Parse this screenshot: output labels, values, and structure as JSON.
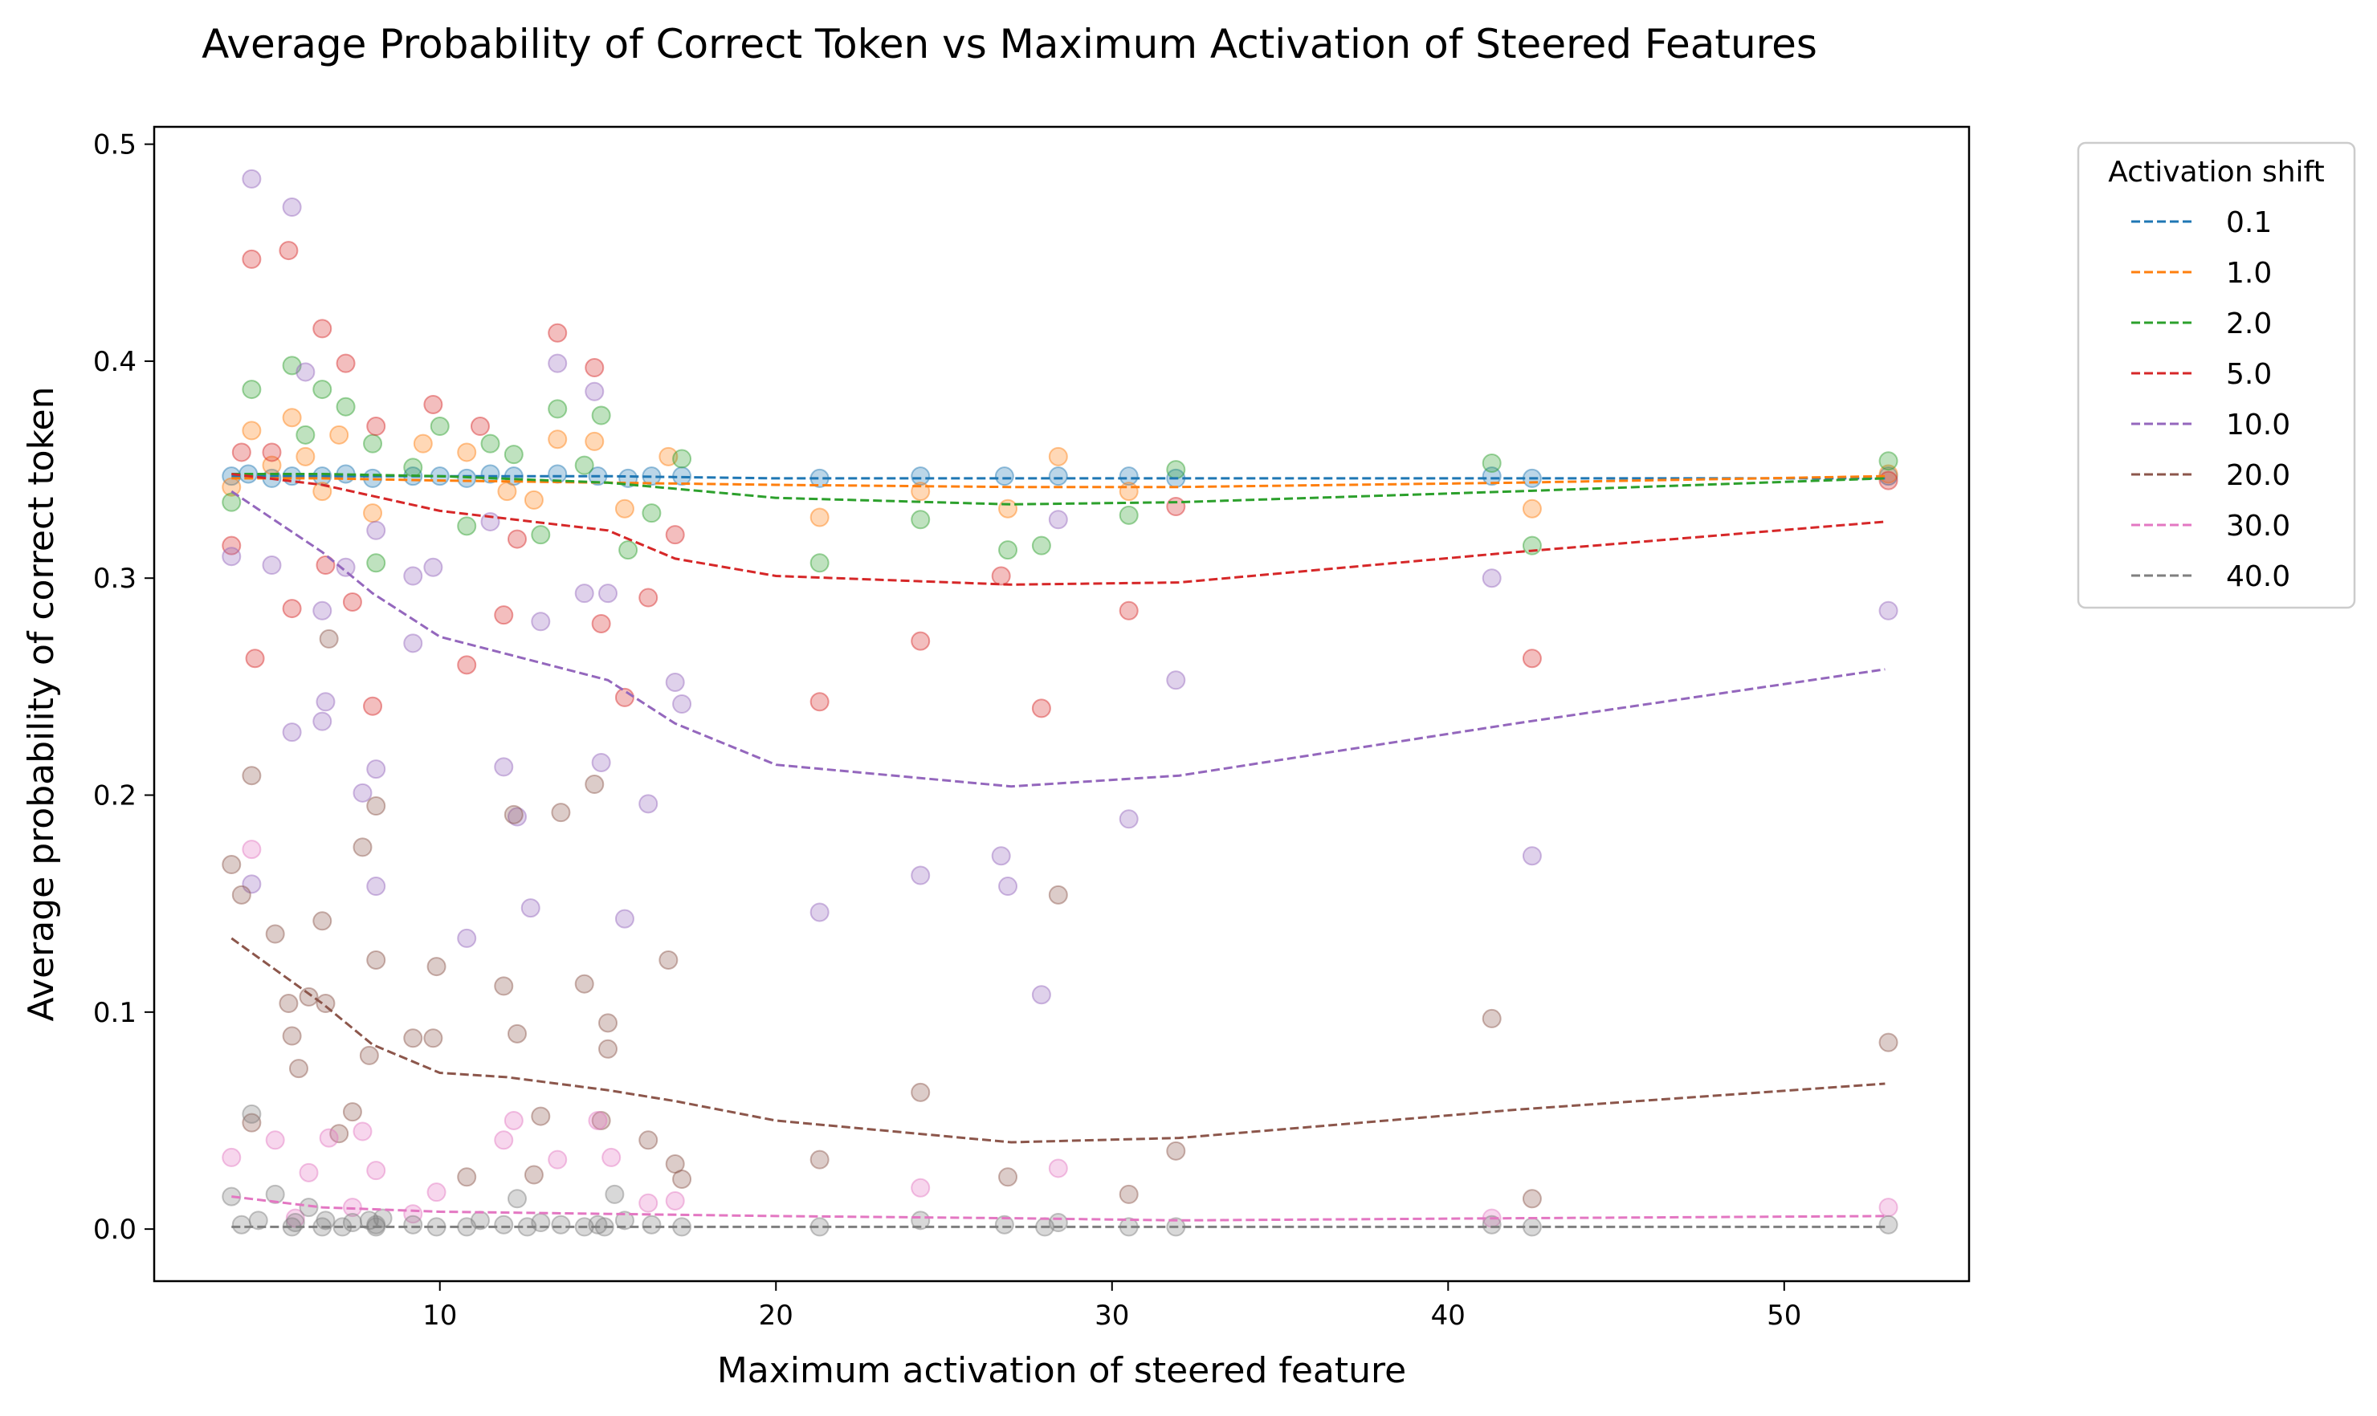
{
  "chart_data": {
    "type": "scatter",
    "title": "Average Probability of Correct Token vs Maximum Activation of Steered Features",
    "xlabel": "Maximum activation of steered feature",
    "ylabel": "Average probability of correct token",
    "xlim": [
      1.5,
      55.5
    ],
    "ylim": [
      -0.024,
      0.508
    ],
    "xticks": [
      10,
      20,
      30,
      40,
      50
    ],
    "xtick_labels": [
      "10",
      "20",
      "30",
      "40",
      "50"
    ],
    "yticks": [
      0.0,
      0.1,
      0.2,
      0.3,
      0.4,
      0.5
    ],
    "ytick_labels": [
      "0.0",
      "0.1",
      "0.2",
      "0.3",
      "0.4",
      "0.5"
    ],
    "grid": false,
    "legend": {
      "title": "Activation shift",
      "placement": "outside upper right",
      "labels": [
        "0.1",
        "1.0",
        "2.0",
        "5.0",
        "10.0",
        "20.0",
        "30.0",
        "40.0"
      ]
    },
    "series": [
      {
        "name": "0.1",
        "color": "#1f77b4",
        "trend_x": [
          3.8,
          6.5,
          10,
          15,
          20,
          27,
          32,
          42,
          53
        ],
        "trend_y": [
          0.347,
          0.347,
          0.347,
          0.347,
          0.346,
          0.346,
          0.346,
          0.346,
          0.346
        ],
        "points_x": [
          3.8,
          4.3,
          5.0,
          5.6,
          6.5,
          7.2,
          8.0,
          9.2,
          10.0,
          10.8,
          11.5,
          12.2,
          13.5,
          14.7,
          15.6,
          16.3,
          17.2,
          21.3,
          24.3,
          26.8,
          28.4,
          30.5,
          31.9,
          41.3,
          42.5,
          53.1
        ],
        "points_y": [
          0.347,
          0.348,
          0.346,
          0.347,
          0.347,
          0.348,
          0.346,
          0.347,
          0.347,
          0.346,
          0.348,
          0.347,
          0.348,
          0.347,
          0.346,
          0.347,
          0.347,
          0.346,
          0.347,
          0.347,
          0.347,
          0.347,
          0.346,
          0.347,
          0.346,
          0.347
        ]
      },
      {
        "name": "1.0",
        "color": "#ff7f0e",
        "trend_x": [
          3.8,
          6.5,
          10,
          15,
          20,
          27,
          32,
          42,
          53
        ],
        "trend_y": [
          0.346,
          0.346,
          0.345,
          0.344,
          0.343,
          0.342,
          0.342,
          0.344,
          0.347
        ],
        "points_x": [
          3.8,
          4.4,
          5.0,
          5.6,
          6.0,
          6.5,
          7.0,
          8.0,
          9.5,
          10.8,
          12.0,
          12.8,
          13.5,
          14.6,
          15.5,
          16.8,
          21.3,
          24.3,
          26.9,
          28.4,
          30.5,
          42.5,
          53.1
        ],
        "points_y": [
          0.342,
          0.368,
          0.352,
          0.374,
          0.356,
          0.34,
          0.366,
          0.33,
          0.362,
          0.358,
          0.34,
          0.336,
          0.364,
          0.363,
          0.332,
          0.356,
          0.328,
          0.34,
          0.332,
          0.356,
          0.34,
          0.332,
          0.348
        ]
      },
      {
        "name": "2.0",
        "color": "#2ca02c",
        "trend_x": [
          3.8,
          6.5,
          10,
          15,
          20,
          27,
          32,
          42,
          53
        ],
        "trend_y": [
          0.348,
          0.348,
          0.347,
          0.344,
          0.337,
          0.334,
          0.335,
          0.34,
          0.346
        ],
        "points_x": [
          3.8,
          4.4,
          5.6,
          6.0,
          6.5,
          7.2,
          8.0,
          8.1,
          9.2,
          10.0,
          10.8,
          11.5,
          12.2,
          13.0,
          13.5,
          14.3,
          14.8,
          15.6,
          16.3,
          17.2,
          21.3,
          24.3,
          26.9,
          27.9,
          30.5,
          31.9,
          41.3,
          42.5,
          53.1
        ],
        "points_y": [
          0.335,
          0.387,
          0.398,
          0.366,
          0.387,
          0.379,
          0.362,
          0.307,
          0.351,
          0.37,
          0.324,
          0.362,
          0.357,
          0.32,
          0.378,
          0.352,
          0.375,
          0.313,
          0.33,
          0.355,
          0.307,
          0.327,
          0.313,
          0.315,
          0.329,
          0.35,
          0.353,
          0.315,
          0.354
        ]
      },
      {
        "name": "5.0",
        "color": "#d62728",
        "trend_x": [
          3.8,
          6.5,
          10,
          15,
          17,
          20,
          27,
          32,
          42,
          53
        ],
        "trend_y": [
          0.348,
          0.343,
          0.331,
          0.322,
          0.309,
          0.301,
          0.297,
          0.298,
          0.312,
          0.326
        ],
        "points_x": [
          3.8,
          4.1,
          4.4,
          4.5,
          5.0,
          5.5,
          5.6,
          6.5,
          6.6,
          7.2,
          7.4,
          8.0,
          8.1,
          9.8,
          10.8,
          11.2,
          11.9,
          12.3,
          13.5,
          14.6,
          14.8,
          15.5,
          16.2,
          17.0,
          21.3,
          24.3,
          26.7,
          27.9,
          30.5,
          31.9,
          42.5,
          53.1
        ],
        "points_y": [
          0.315,
          0.358,
          0.447,
          0.263,
          0.358,
          0.451,
          0.286,
          0.415,
          0.306,
          0.399,
          0.289,
          0.241,
          0.37,
          0.38,
          0.26,
          0.37,
          0.283,
          0.318,
          0.413,
          0.397,
          0.279,
          0.245,
          0.291,
          0.32,
          0.243,
          0.271,
          0.301,
          0.24,
          0.285,
          0.333,
          0.263,
          0.345
        ]
      },
      {
        "name": "10.0",
        "color": "#9467bd",
        "trend_x": [
          3.8,
          6.5,
          8,
          10,
          12,
          15,
          17,
          20,
          27,
          32,
          42,
          53
        ],
        "trend_y": [
          0.34,
          0.312,
          0.293,
          0.273,
          0.265,
          0.253,
          0.233,
          0.214,
          0.204,
          0.209,
          0.233,
          0.258
        ],
        "points_x": [
          3.8,
          4.4,
          4.4,
          5.0,
          5.6,
          5.6,
          6.0,
          6.5,
          6.5,
          6.6,
          7.2,
          7.7,
          8.1,
          8.1,
          8.1,
          9.2,
          9.2,
          9.8,
          10.8,
          11.5,
          11.9,
          12.3,
          12.7,
          13.0,
          13.5,
          14.3,
          14.6,
          14.8,
          15.0,
          15.5,
          16.2,
          17.0,
          17.2,
          21.3,
          24.3,
          26.7,
          26.9,
          27.9,
          28.4,
          30.5,
          31.9,
          41.3,
          42.5,
          53.1
        ],
        "points_y": [
          0.31,
          0.484,
          0.159,
          0.306,
          0.471,
          0.229,
          0.395,
          0.234,
          0.285,
          0.243,
          0.305,
          0.201,
          0.322,
          0.212,
          0.158,
          0.27,
          0.301,
          0.305,
          0.134,
          0.326,
          0.213,
          0.19,
          0.148,
          0.28,
          0.399,
          0.293,
          0.386,
          0.215,
          0.293,
          0.143,
          0.196,
          0.252,
          0.242,
          0.146,
          0.163,
          0.172,
          0.158,
          0.108,
          0.327,
          0.189,
          0.253,
          0.3,
          0.172,
          0.285
        ]
      },
      {
        "name": "20.0",
        "color": "#8c564b",
        "trend_x": [
          3.8,
          6.5,
          8,
          10,
          12,
          15,
          17,
          20,
          27,
          32,
          42,
          53
        ],
        "trend_y": [
          0.134,
          0.104,
          0.085,
          0.072,
          0.07,
          0.064,
          0.059,
          0.05,
          0.04,
          0.042,
          0.055,
          0.067
        ],
        "points_x": [
          3.8,
          4.1,
          4.4,
          4.4,
          5.1,
          5.5,
          5.6,
          5.8,
          6.1,
          6.5,
          6.6,
          6.7,
          7.0,
          7.4,
          7.7,
          7.9,
          8.1,
          8.1,
          9.2,
          9.8,
          9.9,
          10.8,
          11.9,
          12.2,
          12.3,
          12.8,
          13.0,
          13.6,
          14.3,
          14.6,
          14.8,
          15.0,
          15.0,
          16.2,
          16.8,
          17.0,
          17.2,
          21.3,
          24.3,
          26.9,
          28.4,
          30.5,
          31.9,
          41.3,
          42.5,
          53.1
        ],
        "points_y": [
          0.168,
          0.154,
          0.209,
          0.049,
          0.136,
          0.104,
          0.089,
          0.074,
          0.107,
          0.142,
          0.104,
          0.272,
          0.044,
          0.054,
          0.176,
          0.08,
          0.195,
          0.124,
          0.088,
          0.088,
          0.121,
          0.024,
          0.112,
          0.191,
          0.09,
          0.025,
          0.052,
          0.192,
          0.113,
          0.205,
          0.05,
          0.083,
          0.095,
          0.041,
          0.124,
          0.03,
          0.023,
          0.032,
          0.063,
          0.024,
          0.154,
          0.016,
          0.036,
          0.097,
          0.014,
          0.086
        ]
      },
      {
        "name": "30.0",
        "color": "#e377c2",
        "trend_x": [
          3.8,
          6.5,
          10,
          15,
          20,
          27,
          32,
          42,
          53
        ],
        "trend_y": [
          0.015,
          0.01,
          0.008,
          0.007,
          0.006,
          0.005,
          0.004,
          0.005,
          0.006
        ],
        "points_x": [
          3.8,
          4.4,
          5.1,
          5.7,
          6.1,
          6.7,
          7.4,
          7.7,
          8.1,
          9.2,
          9.9,
          11.9,
          12.2,
          13.5,
          14.7,
          15.1,
          16.2,
          17.0,
          24.3,
          28.4,
          41.3,
          53.1
        ],
        "points_y": [
          0.033,
          0.175,
          0.041,
          0.005,
          0.026,
          0.042,
          0.01,
          0.045,
          0.027,
          0.007,
          0.017,
          0.041,
          0.05,
          0.032,
          0.05,
          0.033,
          0.012,
          0.013,
          0.019,
          0.028,
          0.005,
          0.01
        ]
      },
      {
        "name": "40.0",
        "color": "#7f7f7f",
        "trend_x": [
          3.8,
          6.5,
          10,
          15,
          20,
          27,
          32,
          42,
          53
        ],
        "trend_y": [
          0.001,
          0.001,
          0.001,
          0.001,
          0.001,
          0.001,
          0.001,
          0.001,
          0.001
        ],
        "points_x": [
          3.8,
          4.1,
          4.4,
          4.6,
          5.1,
          5.6,
          5.7,
          6.1,
          6.5,
          6.6,
          7.1,
          7.4,
          7.9,
          8.1,
          8.1,
          8.3,
          9.2,
          9.9,
          10.8,
          11.2,
          11.9,
          12.3,
          12.6,
          13.0,
          13.6,
          14.3,
          14.7,
          14.9,
          15.2,
          15.5,
          16.3,
          17.2,
          21.3,
          24.3,
          26.8,
          28.0,
          28.4,
          30.5,
          31.9,
          41.3,
          42.5,
          53.1
        ],
        "points_y": [
          0.015,
          0.002,
          0.053,
          0.004,
          0.016,
          0.001,
          0.003,
          0.01,
          0.001,
          0.004,
          0.001,
          0.003,
          0.004,
          0.001,
          0.002,
          0.005,
          0.002,
          0.001,
          0.001,
          0.004,
          0.002,
          0.014,
          0.001,
          0.003,
          0.002,
          0.001,
          0.002,
          0.001,
          0.016,
          0.004,
          0.002,
          0.001,
          0.001,
          0.004,
          0.002,
          0.001,
          0.003,
          0.001,
          0.001,
          0.002,
          0.001,
          0.002
        ]
      }
    ]
  }
}
